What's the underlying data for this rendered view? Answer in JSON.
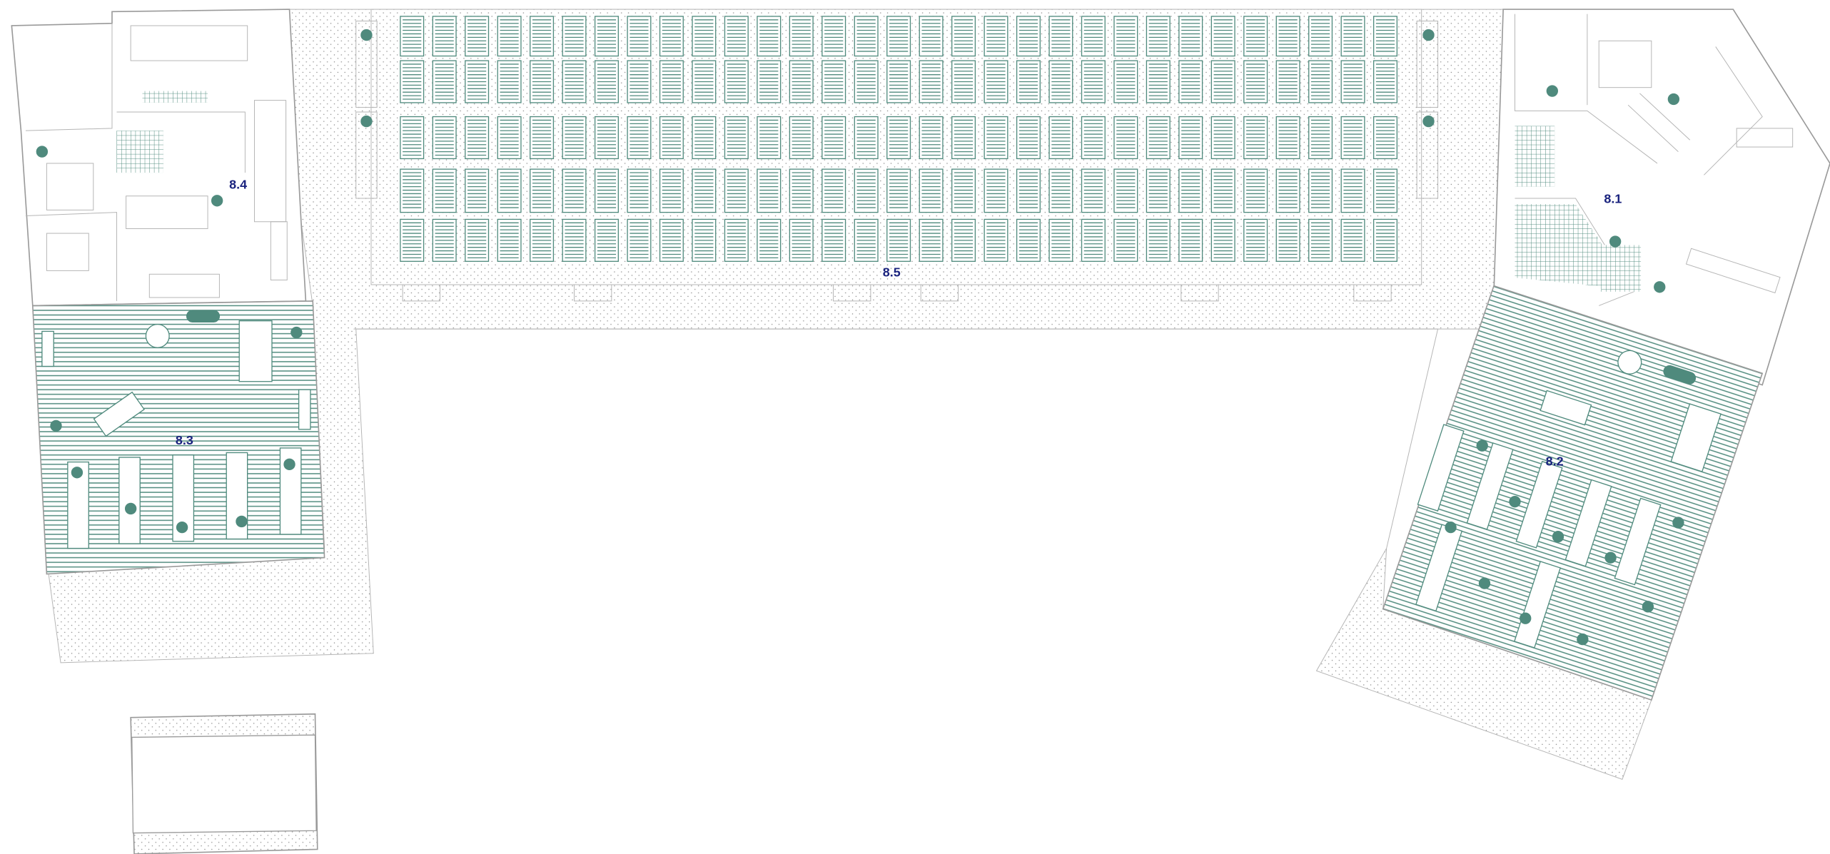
{
  "labels": [
    "8.4",
    "8.5",
    "8.1",
    "8.3",
    "8.2"
  ]
}
